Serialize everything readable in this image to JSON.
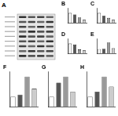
{
  "blot": {
    "panel": "A"
  },
  "chart_data": [
    {
      "type": "bar",
      "title": "B",
      "categories": [
        null,
        null,
        null,
        null
      ],
      "values": [
        1.0,
        0.85,
        0.55,
        0.3
      ],
      "colors": [
        "#ffffff",
        "#555555",
        "#999999",
        "#cccccc"
      ],
      "ylim": [
        0,
        1.5
      ],
      "yticks": [
        0,
        0.5,
        1
      ],
      "grid": false,
      "tick_labels": false
    },
    {
      "type": "bar",
      "title": "C",
      "categories": [
        null,
        null,
        null,
        null
      ],
      "values": [
        1.0,
        0.7,
        0.5,
        0.3
      ],
      "colors": [
        "#ffffff",
        "#555555",
        "#999999",
        "#cccccc"
      ],
      "ylim": [
        0,
        1.5
      ],
      "yticks": [
        0,
        0.5,
        1
      ],
      "grid": false,
      "tick_labels": false
    },
    {
      "type": "bar",
      "title": "D",
      "categories": [
        null,
        null,
        null,
        null
      ],
      "values": [
        1.0,
        0.9,
        0.4,
        0.3
      ],
      "colors": [
        "#ffffff",
        "#555555",
        "#999999",
        "#cccccc"
      ],
      "ylim": [
        0,
        1.5
      ],
      "yticks": [
        0,
        0.5,
        1
      ],
      "grid": false,
      "tick_labels": false
    },
    {
      "type": "bar",
      "title": "E",
      "categories": [
        null,
        null,
        null,
        null
      ],
      "values": [
        1.0,
        1.1,
        2.6,
        1.2
      ],
      "colors": [
        "#ffffff",
        "#555555",
        "#999999",
        "#cccccc"
      ],
      "ylim": [
        0,
        3.5
      ],
      "yticks": [
        0,
        1,
        2,
        3
      ],
      "grid": false,
      "tick_labels": false
    },
    {
      "type": "bar",
      "title": "F",
      "categories": [
        null,
        null,
        null,
        null
      ],
      "values": [
        1.0,
        1.2,
        3.0,
        1.8
      ],
      "colors": [
        "#ffffff",
        "#555555",
        "#999999",
        "#cccccc"
      ],
      "ylim": [
        0,
        3.5
      ],
      "yticks": [
        0,
        1,
        2,
        3
      ],
      "grid": false,
      "tick_labels": false
    },
    {
      "type": "bar",
      "title": "G",
      "categories": [
        null,
        null,
        null,
        null
      ],
      "values": [
        1.0,
        2.4,
        3.0,
        1.5
      ],
      "colors": [
        "#ffffff",
        "#555555",
        "#999999",
        "#cccccc"
      ],
      "ylim": [
        0,
        3.5
      ],
      "yticks": [
        0,
        1,
        2,
        3
      ],
      "grid": false,
      "tick_labels": false
    },
    {
      "type": "bar",
      "title": "H",
      "categories": [
        null,
        null,
        null,
        null
      ],
      "values": [
        1.0,
        1.5,
        3.0,
        2.0
      ],
      "colors": [
        "#ffffff",
        "#555555",
        "#999999",
        "#cccccc"
      ],
      "ylim": [
        0,
        3.5
      ],
      "yticks": [
        0,
        1,
        2,
        3
      ],
      "grid": false,
      "tick_labels": false
    }
  ]
}
